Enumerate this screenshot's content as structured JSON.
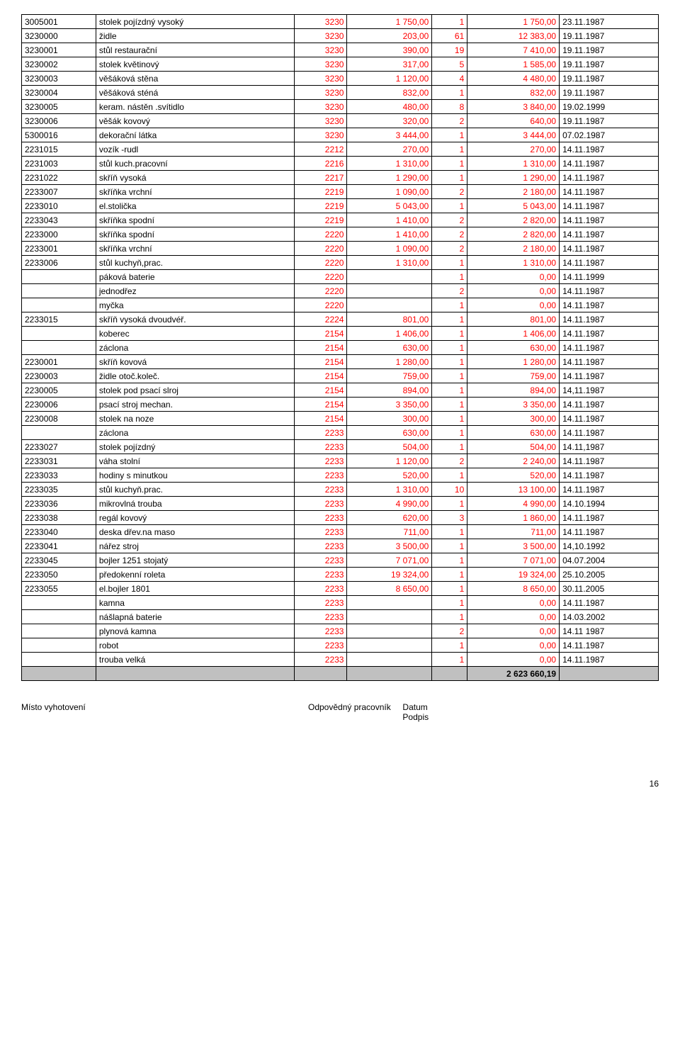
{
  "table": {
    "col_classes": [
      "c0 left",
      "c1 left",
      "c2 red right",
      "c3 red right",
      "c4 red right",
      "c5 red right",
      "c6 left"
    ],
    "rows": [
      [
        "3005001",
        "stolek pojízdný vysoký",
        "3230",
        "1 750,00",
        "1",
        "1 750,00",
        "23.11.1987"
      ],
      [
        "3230000",
        "židle",
        "3230",
        "203,00",
        "61",
        "12 383,00",
        "19.11.1987"
      ],
      [
        "3230001",
        "stůl restaurační",
        "3230",
        "390,00",
        "19",
        "7 410,00",
        "19.11.1987"
      ],
      [
        "3230002",
        "stolek květinový",
        "3230",
        "317,00",
        "5",
        "1 585,00",
        "19.11.1987"
      ],
      [
        "3230003",
        "věšáková stěna",
        "3230",
        "1 120,00",
        "4",
        "4 480,00",
        "19.11.1987"
      ],
      [
        "3230004",
        "věšáková sténá",
        "3230",
        "832,00",
        "1",
        "832,00",
        "19.11.1987"
      ],
      [
        "3230005",
        "keram. nástěn .svítidlo",
        "3230",
        "480,00",
        "8",
        "3 840,00",
        "19.02.1999"
      ],
      [
        "3230006",
        "věšák kovový",
        "3230",
        "320,00",
        "2",
        "640,00",
        "19.11.1987"
      ],
      [
        "5300016",
        "dekorační látka",
        "3230",
        "3 444,00",
        "1",
        "3 444,00",
        "07.02.1987"
      ],
      [
        "2231015",
        "vozík -rudl",
        "2212",
        "270,00",
        "1",
        "270,00",
        "14.11.1987"
      ],
      [
        "2231003",
        "stůl kuch.pracovní",
        "2216",
        "1 310,00",
        "1",
        "1 310,00",
        "14.11.1987"
      ],
      [
        "2231022",
        "skříň vysoká",
        "2217",
        "1 290,00",
        "1",
        "1 290,00",
        "14.11.1987"
      ],
      [
        "2233007",
        "skříňka vrchní",
        "2219",
        "1 090,00",
        "2",
        "2 180,00",
        "14.11.1987"
      ],
      [
        "2233010",
        "el.stolička",
        "2219",
        "5 043,00",
        "1",
        "5 043,00",
        "14.11.1987"
      ],
      [
        "2233043",
        "skříňka spodní",
        "2219",
        "1 410,00",
        "2",
        "2 820,00",
        "14.11.1987"
      ],
      [
        "2233000",
        "skříňka spodní",
        "2220",
        "1 410,00",
        "2",
        "2 820,00",
        "14.11.1987"
      ],
      [
        "2233001",
        "skříňka vrchní",
        "2220",
        "1 090,00",
        "2",
        "2 180,00",
        "14.11.1987"
      ],
      [
        "2233006",
        "stůl kuchyň,prac.",
        "2220",
        "1 310,00",
        "1",
        "1 310,00",
        "14.11.1987"
      ],
      [
        "",
        "páková baterie",
        "2220",
        "",
        "1",
        "0,00",
        "14.11.1999"
      ],
      [
        "",
        "jednodřez",
        "2220",
        "",
        "2",
        "0,00",
        "14.11.1987"
      ],
      [
        "",
        "myčka",
        "2220",
        "",
        "1",
        "0,00",
        "14.11.1987"
      ],
      [
        "2233015",
        "skříň vysoká dvoudvéř.",
        "2224",
        "801,00",
        "1",
        "801,00",
        "14.11.1987"
      ],
      [
        "",
        "koberec",
        "2154",
        "1 406,00",
        "1",
        "1 406,00",
        "14.11.1987"
      ],
      [
        "",
        "záclona",
        "2154",
        "630,00",
        "1",
        "630,00",
        "14.11.1987"
      ],
      [
        "2230001",
        "skříň kovová",
        "2154",
        "1 280,00",
        "1",
        "1 280,00",
        "14.11.1987"
      ],
      [
        "2230003",
        "židle otoč.koleč.",
        "2154",
        "759,00",
        "1",
        "759,00",
        "14.11.1987"
      ],
      [
        "2230005",
        "stolek pod psací slroj",
        "2154",
        "894,00",
        "1",
        "894,00",
        "14,11.1987"
      ],
      [
        "2230006",
        "psací stroj mechan.",
        "2154",
        "3 350,00",
        "1",
        "3 350,00",
        "14.11.1987"
      ],
      [
        "2230008",
        "stolek na noze",
        "2154",
        "300,00",
        "1",
        "300,00",
        "14.11.1987"
      ],
      [
        "",
        "záclona",
        "2233",
        "630,00",
        "1",
        "630,00",
        "14.11.1987"
      ],
      [
        "2233027",
        "stolek pojízdný",
        "2233",
        "504,00",
        "1",
        "504,00",
        "14.11,1987"
      ],
      [
        "2233031",
        "váha stolní",
        "2233",
        "1 120,00",
        "2",
        "2 240,00",
        "14.11.1987"
      ],
      [
        "2233033",
        "hodiny s minutkou",
        "2233",
        "520,00",
        "1",
        "520,00",
        "14.11.1987"
      ],
      [
        "2233035",
        "stůl kuchyň.prac.",
        "2233",
        "1 310,00",
        "10",
        "13 100,00",
        "14.11.1987"
      ],
      [
        "2233036",
        "mikrovlná trouba",
        "2233",
        "4 990,00",
        "1",
        "4 990,00",
        "14.10.1994"
      ],
      [
        "2233038",
        "regál kovový",
        "2233",
        "620,00",
        "3",
        "1 860,00",
        "14.11.1987"
      ],
      [
        "2233040",
        "deska dřev.na maso",
        "2233",
        "711,00",
        "1",
        "711,00",
        "14.11.1987"
      ],
      [
        "2233041",
        "nářez stroj",
        "2233",
        "3 500,00",
        "1",
        "3 500,00",
        "14,10.1992"
      ],
      [
        "2233045",
        "bojler 1251 stojatý",
        "2233",
        "7 071,00",
        "1",
        "7 071,00",
        "04.07.2004"
      ],
      [
        "2233050",
        "předokenní roleta",
        "2233",
        "19 324,00",
        "1",
        "19 324,00",
        "25.10.2005"
      ],
      [
        "2233055",
        "el.bojler 1801",
        "2233",
        "8 650,00",
        "1",
        "8 650,00",
        "30.11.2005"
      ],
      [
        "",
        "kamna",
        "2233",
        "",
        "1",
        "0,00",
        "14.11.1987"
      ],
      [
        "",
        "nášlapná baterie",
        "2233",
        "",
        "1",
        "0,00",
        "14.03.2002"
      ],
      [
        "",
        "plynová kamna",
        "2233",
        "",
        "2",
        "0,00",
        "14.11 1987"
      ],
      [
        "",
        "robot",
        "2233",
        "",
        "1",
        "0,00",
        "14.11.1987"
      ],
      [
        "",
        "trouba velká",
        "2233",
        "",
        "1",
        "0,00",
        "14.11.1987"
      ]
    ],
    "total_row": [
      "",
      "",
      "",
      "",
      "",
      "2 623 660,19",
      ""
    ],
    "total_bold": true,
    "grey_bg": "#c0c0c0",
    "red_color": "#ff0000"
  },
  "footer": {
    "left": "Místo vyhotovení",
    "right1": "Odpovědný pracovník",
    "right2": "Datum",
    "right3": "Podpis"
  },
  "page_number": "16"
}
